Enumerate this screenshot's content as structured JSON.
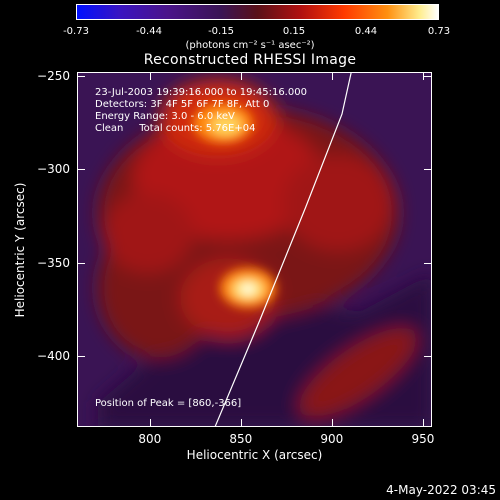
{
  "colorbar": {
    "ticks": [
      "-0.73",
      "-0.44",
      "-0.15",
      "0.15",
      "0.44",
      "0.73"
    ],
    "unit_label": "(photons cm⁻² s⁻¹ asec⁻²)"
  },
  "annotations": {
    "time": "23-Jul-2003 19:39:16.000 to 19:45:16.000",
    "detectors": "Detectors: 3F 4F 5F 6F 7F 8F, Att 0",
    "energy": "Energy Range: 3.0 - 6.0 keV",
    "method": "Clean     Total counts: 5.76E+04",
    "peak": "Position of Peak = [860,-366]"
  },
  "footer": {
    "date": "4-May-2022 03:45"
  },
  "chart_data": {
    "type": "heatmap",
    "title": "Reconstructed RHESSI Image",
    "xlabel": "Heliocentric X (arcsec)",
    "ylabel": "Heliocentric Y (arcsec)",
    "xlim": [
      760,
      955
    ],
    "ylim": [
      -438,
      -248
    ],
    "x_ticks": [
      800,
      850,
      900,
      950
    ],
    "y_ticks": [
      -250,
      -300,
      -350,
      -400
    ],
    "colorbar_range": [
      -0.73,
      0.73
    ],
    "colormap": "hot (dark purple → red → orange → white)",
    "peak": {
      "x": 860,
      "y": -366
    },
    "secondary_bright_region": {
      "x": 850,
      "y": -285
    },
    "limb_curve": [
      [
        835,
        -438
      ],
      [
        860,
        -380
      ],
      [
        885,
        -320
      ],
      [
        905,
        -270
      ],
      [
        910,
        -248
      ]
    ]
  }
}
